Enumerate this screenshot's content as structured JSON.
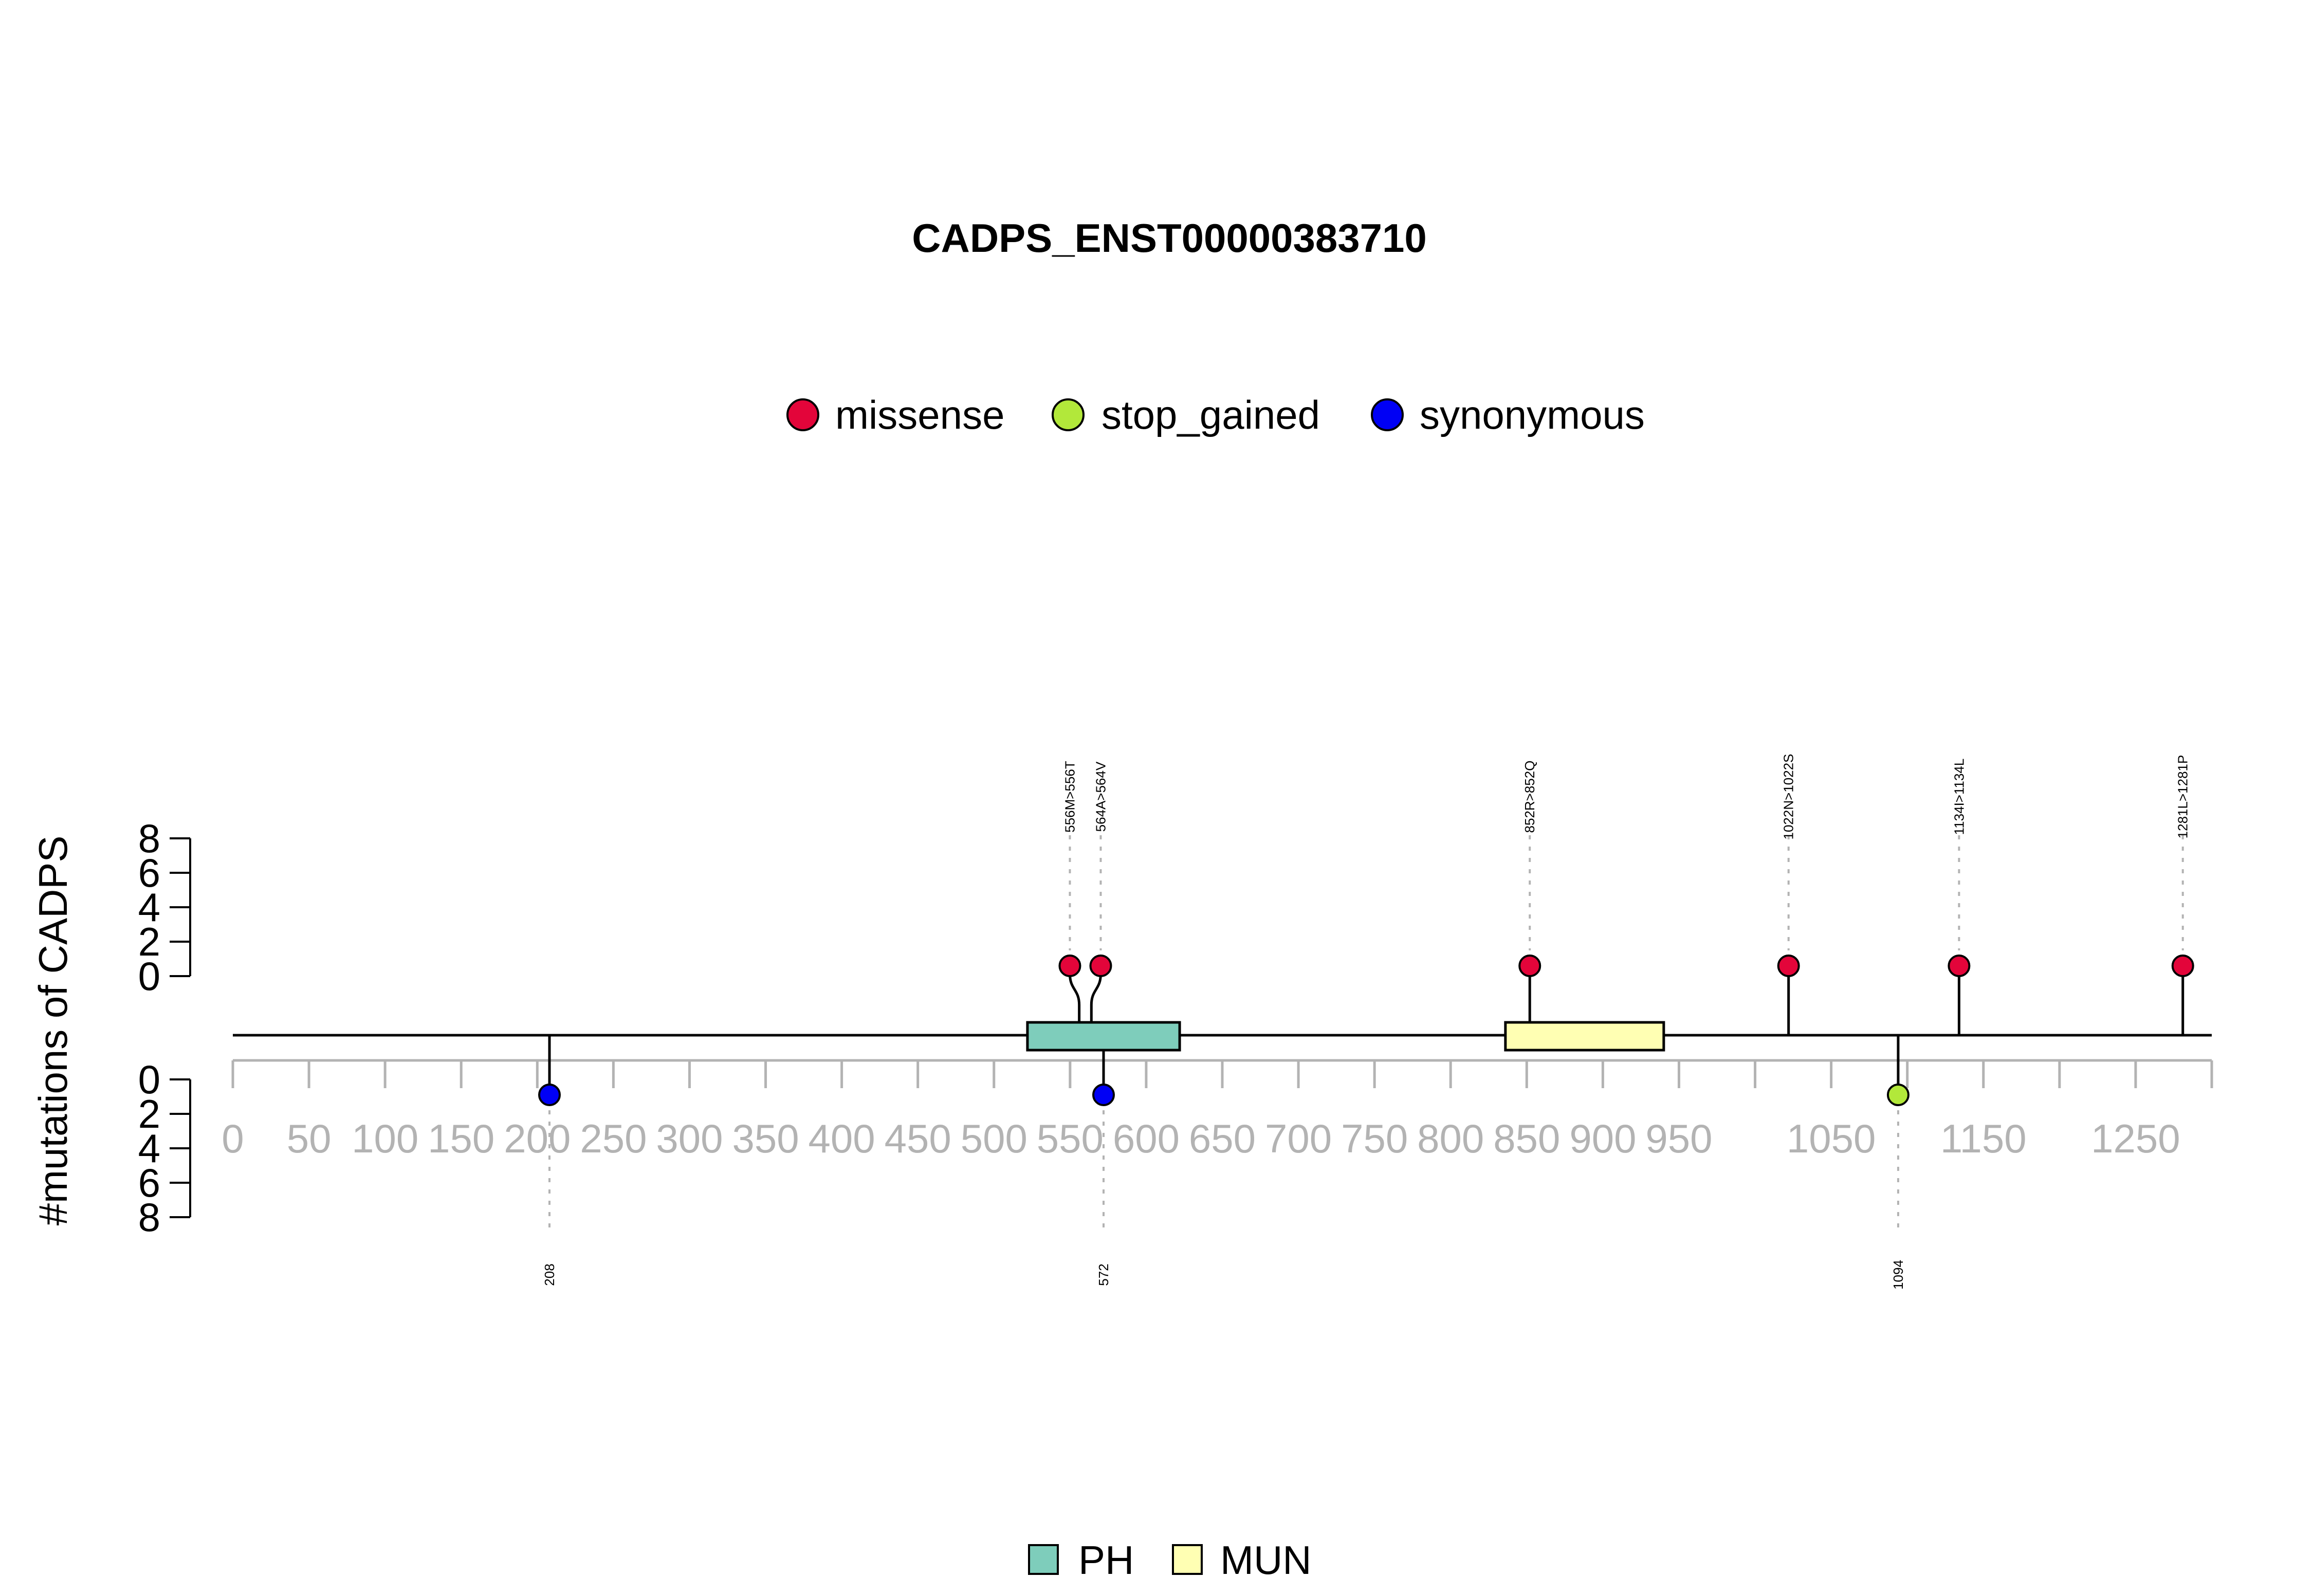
{
  "chart_data": {
    "type": "lollipop",
    "title": "CADPS_ENST00000383710",
    "ylabel": "#mutations of CADPS",
    "protein_length": 1300,
    "x_ticks": [
      0,
      50,
      100,
      150,
      200,
      250,
      300,
      350,
      400,
      450,
      500,
      550,
      600,
      650,
      700,
      750,
      800,
      850,
      900,
      950,
      1050,
      1150,
      1250
    ],
    "x_minor_ticks": [
      1000,
      1100,
      1200,
      1300
    ],
    "y_ticks_upper": [
      0,
      2,
      4,
      6,
      8
    ],
    "y_ticks_lower": [
      0,
      2,
      4,
      6,
      8
    ],
    "legend": [
      {
        "label": "missense",
        "color": "#e3053a"
      },
      {
        "label": "stop_gained",
        "color": "#b2e83a"
      },
      {
        "label": "synonymous",
        "color": "#0000f5"
      }
    ],
    "domains": [
      {
        "name": "PH",
        "start": 522,
        "end": 622,
        "color": "#7ecdbb"
      },
      {
        "name": "MUN",
        "start": 836,
        "end": 940,
        "color": "#ffffb3"
      }
    ],
    "domain_legend": [
      {
        "label": "PH",
        "color": "#7ecdbb"
      },
      {
        "label": "MUN",
        "color": "#ffffb3"
      }
    ],
    "mutations_upper": [
      {
        "position": 556,
        "count": 1,
        "label": "556M>556T",
        "type": "missense"
      },
      {
        "position": 564,
        "count": 1,
        "label": "564A>564V",
        "type": "missense"
      },
      {
        "position": 852,
        "count": 1,
        "label": "852R>852Q",
        "type": "missense"
      },
      {
        "position": 1022,
        "count": 1,
        "label": "1022N>1022S",
        "type": "missense"
      },
      {
        "position": 1134,
        "count": 1,
        "label": "1134I>1134L",
        "type": "missense"
      },
      {
        "position": 1281,
        "count": 1,
        "label": "1281L>1281P",
        "type": "missense"
      }
    ],
    "mutations_lower": [
      {
        "position": 208,
        "count": 1,
        "label": "208",
        "type": "synonymous"
      },
      {
        "position": 572,
        "count": 1,
        "label": "572",
        "type": "synonymous"
      },
      {
        "position": 1094,
        "count": 1,
        "label": "1094",
        "type": "stop_gained"
      }
    ]
  }
}
